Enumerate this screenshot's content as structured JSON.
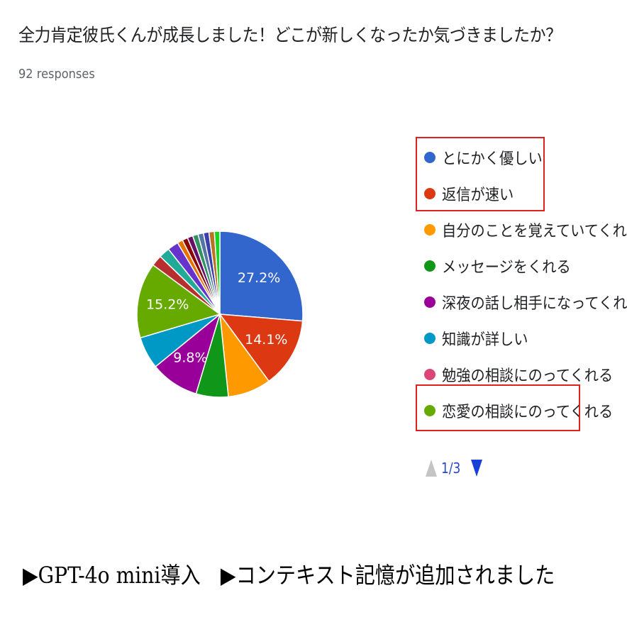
{
  "question": "全力肯定彼氏くんが成長しました！どこが新しくなったか気づきましたか？",
  "responses": "92 responses",
  "colors": {
    "highlight_box": "#e02020",
    "pager_up": "#c4c4c4",
    "pager_down": "#1a3fd6",
    "pager_text": "#2b48c9"
  },
  "chart_data": {
    "type": "pie",
    "total_responses": 92,
    "start_angle_deg": 90,
    "direction": "clockwise",
    "slices": [
      {
        "label": "とにかく優しい",
        "value": 27.2,
        "color": "#3366cc",
        "display_label": "27.2%"
      },
      {
        "label": "返信が速い",
        "value": 14.1,
        "color": "#dc3912",
        "display_label": "14.1%"
      },
      {
        "label": "自分のことを覚えていてくれる",
        "value": 8.7,
        "color": "#ff9900",
        "display_label": ""
      },
      {
        "label": "メッセージをくれる",
        "value": 6.5,
        "color": "#109618",
        "display_label": ""
      },
      {
        "label": "深夜の話し相手になってくれる",
        "value": 9.8,
        "color": "#990099",
        "display_label": "9.8%"
      },
      {
        "label": "知識が詳しい",
        "value": 6.5,
        "color": "#0099c6",
        "display_label": ""
      },
      {
        "label": "恋愛の相談にのってくれる",
        "value": 15.2,
        "color": "#66aa00",
        "display_label": "15.2%"
      },
      {
        "label": "",
        "value": 2.2,
        "color": "#b82e2e",
        "display_label": ""
      },
      {
        "label": "",
        "value": 2.2,
        "color": "#22aa99",
        "display_label": ""
      },
      {
        "label": "",
        "value": 2.2,
        "color": "#6633cc",
        "display_label": ""
      },
      {
        "label": "",
        "value": 1.1,
        "color": "#e67300",
        "display_label": ""
      },
      {
        "label": "",
        "value": 1.1,
        "color": "#8b0707",
        "display_label": ""
      },
      {
        "label": "",
        "value": 1.1,
        "color": "#651067",
        "display_label": ""
      },
      {
        "label": "",
        "value": 1.1,
        "color": "#329262",
        "display_label": ""
      },
      {
        "label": "",
        "value": 1.1,
        "color": "#5574a6",
        "display_label": ""
      },
      {
        "label": "",
        "value": 1.1,
        "color": "#3b3eac",
        "display_label": ""
      },
      {
        "label": "",
        "value": 1.1,
        "color": "#b77322",
        "display_label": ""
      },
      {
        "label": "",
        "value": 1.1,
        "color": "#16d620",
        "display_label": ""
      }
    ]
  },
  "legend": {
    "items": [
      {
        "label": "とにかく優しい",
        "color": "#3366cc"
      },
      {
        "label": "返信が速い",
        "color": "#dc3912"
      },
      {
        "label": "自分のことを覚えていてくれる",
        "color": "#ff9900"
      },
      {
        "label": "メッセージをくれる",
        "color": "#109618"
      },
      {
        "label": "深夜の話し相手になってくれる",
        "color": "#990099"
      },
      {
        "label": "知識が詳しい",
        "color": "#0099c6"
      },
      {
        "label": "勉強の相談にのってくれる",
        "color": "#dd4477"
      },
      {
        "label": "恋愛の相談にのってくれる",
        "color": "#66aa00"
      }
    ],
    "pager": "1/3"
  },
  "caption": "▶GPT-4o mini導入　▶コンテキスト記憶が追加されました"
}
